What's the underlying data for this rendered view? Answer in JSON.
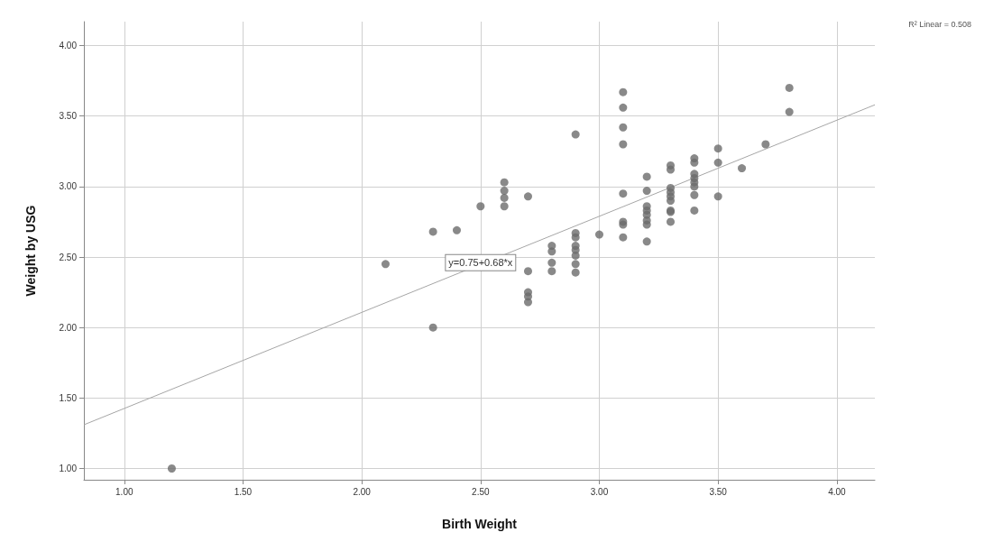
{
  "chart_data": {
    "type": "scatter",
    "xlabel": "Birth Weight",
    "ylabel": "Weight by USG",
    "annotations": [
      {
        "text": "y=0.75+0.68*x",
        "x": 2.5,
        "y": 2.46
      },
      "R² Linear = 0.508"
    ],
    "x": [
      1.2,
      2.1,
      2.3,
      2.3,
      2.4,
      2.5,
      2.6,
      2.6,
      2.6,
      2.6,
      2.7,
      2.7,
      2.7,
      2.7,
      2.7,
      2.8,
      2.8,
      2.8,
      2.8,
      2.9,
      2.9,
      2.9,
      2.9,
      2.9,
      2.9,
      2.9,
      2.9,
      3.0,
      3.1,
      3.1,
      3.1,
      3.1,
      3.1,
      3.1,
      3.1,
      3.1,
      3.2,
      3.2,
      3.2,
      3.2,
      3.2,
      3.2,
      3.2,
      3.2,
      3.3,
      3.3,
      3.3,
      3.3,
      3.3,
      3.3,
      3.3,
      3.3,
      3.3,
      3.4,
      3.4,
      3.4,
      3.4,
      3.4,
      3.4,
      3.4,
      3.4,
      3.5,
      3.5,
      3.5,
      3.6,
      3.7,
      3.8,
      3.8
    ],
    "values": [
      1.0,
      2.45,
      2.68,
      2.0,
      2.69,
      2.86,
      3.03,
      2.97,
      2.92,
      2.86,
      2.93,
      2.4,
      2.25,
      2.22,
      2.18,
      2.58,
      2.54,
      2.46,
      2.4,
      3.37,
      2.67,
      2.64,
      2.58,
      2.55,
      2.51,
      2.45,
      2.39,
      2.66,
      3.67,
      3.56,
      3.42,
      3.3,
      2.95,
      2.75,
      2.73,
      2.64,
      3.07,
      2.97,
      2.86,
      2.83,
      2.8,
      2.76,
      2.73,
      2.61,
      3.15,
      3.12,
      2.99,
      2.96,
      2.93,
      2.9,
      2.83,
      2.82,
      2.75,
      3.2,
      3.17,
      3.09,
      3.06,
      3.03,
      3.0,
      2.94,
      2.83,
      3.27,
      3.17,
      2.93,
      3.13,
      3.3,
      3.7,
      3.53
    ],
    "color": "#6b6b6b",
    "marker": "circle",
    "series": [
      {
        "type": "line",
        "x": [
          0.83,
          4.16
        ],
        "values": [
          1.31,
          3.58
        ],
        "color": "#a6a6a6",
        "marker": "none",
        "line_style": "solid"
      }
    ],
    "xlim": [
      0.83,
      4.16
    ],
    "ylim": [
      0.92,
      4.17
    ],
    "xticks": [
      {
        "value": 1,
        "label": "1.00"
      },
      {
        "value": 1.5,
        "label": "1.50"
      },
      {
        "value": 2,
        "label": "2.00"
      },
      {
        "value": 2.5,
        "label": "2.50"
      },
      {
        "value": 3,
        "label": "3.00"
      },
      {
        "value": 3.5,
        "label": "3.50"
      },
      {
        "value": 4,
        "label": "4.00"
      }
    ],
    "yticks": [
      {
        "value": 1,
        "label": "1.00"
      },
      {
        "value": 1.5,
        "label": "1.50"
      },
      {
        "value": 2,
        "label": "2.00"
      },
      {
        "value": 2.5,
        "label": "2.50"
      },
      {
        "value": 3,
        "label": "3.00"
      },
      {
        "value": 3.5,
        "label": "3.50"
      },
      {
        "value": 4,
        "label": "4.00"
      }
    ],
    "grid": true
  }
}
